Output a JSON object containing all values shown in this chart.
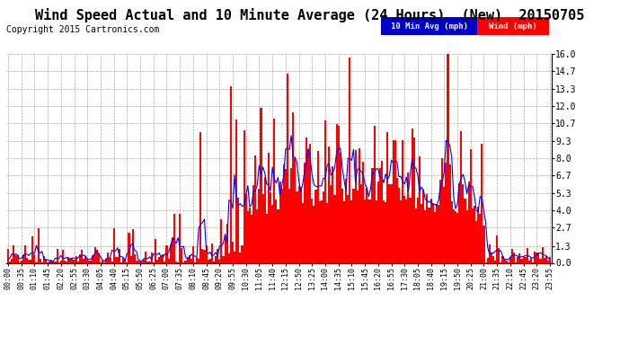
{
  "title": "Wind Speed Actual and 10 Minute Average (24 Hours)  (New)  20150705",
  "copyright": "Copyright 2015 Cartronics.com",
  "legend_blue_label": "10 Min Avg (mph)",
  "legend_red_label": "Wind (mph)",
  "yticks": [
    0.0,
    1.3,
    2.7,
    4.0,
    5.3,
    6.7,
    8.0,
    9.3,
    10.7,
    12.0,
    13.3,
    14.7,
    16.0
  ],
  "ylim": [
    0.0,
    16.0
  ],
  "bg_color": "#ffffff",
  "plot_bg_color": "#ffffff",
  "grid_color": "#aaaaaa",
  "bar_color": "#ff0000",
  "line_color": "#0000ff",
  "title_fontsize": 11,
  "copyright_fontsize": 7,
  "tick_fontsize": 7,
  "n_points": 288,
  "time_labels": [
    "00:00",
    "00:35",
    "01:10",
    "01:45",
    "02:20",
    "02:55",
    "03:30",
    "04:05",
    "04:40",
    "05:15",
    "05:50",
    "06:25",
    "07:00",
    "07:35",
    "08:10",
    "08:45",
    "09:20",
    "09:55",
    "10:30",
    "11:05",
    "11:40",
    "12:15",
    "12:50",
    "13:25",
    "14:00",
    "14:35",
    "15:10",
    "15:45",
    "16:20",
    "16:55",
    "17:30",
    "18:05",
    "18:40",
    "19:15",
    "19:50",
    "20:25",
    "21:00",
    "21:35",
    "22:10",
    "22:45",
    "23:20",
    "23:55"
  ]
}
